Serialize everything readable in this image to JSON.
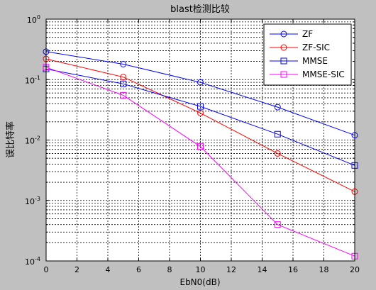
{
  "chart_data": {
    "type": "line",
    "title": "blast检测比较",
    "xlabel": "EbN0(dB)",
    "ylabel": "误比特率",
    "xlim": [
      0,
      20
    ],
    "ylim": [
      0.0001,
      1
    ],
    "yscale": "log",
    "grid": true,
    "legend_position": "top-right",
    "xticks": [
      "0",
      "2",
      "4",
      "6",
      "8",
      "10",
      "12",
      "14",
      "16",
      "18",
      "20"
    ],
    "yticks": [
      {
        "base": "10",
        "exp": "0"
      },
      {
        "base": "10",
        "exp": "-1"
      },
      {
        "base": "10",
        "exp": "-2"
      },
      {
        "base": "10",
        "exp": "-3"
      },
      {
        "base": "10",
        "exp": "-4"
      }
    ],
    "series": [
      {
        "name": "ZF",
        "color": "#0000ff",
        "marker": "circle",
        "x": [
          0,
          5,
          10,
          15,
          20
        ],
        "y": [
          0.29,
          0.18,
          0.09,
          0.035,
          0.012
        ]
      },
      {
        "name": "ZF-SIC",
        "color": "#ff0000",
        "marker": "circle",
        "x": [
          0,
          5,
          10,
          15,
          20
        ],
        "y": [
          0.22,
          0.11,
          0.028,
          0.006,
          0.0014
        ]
      },
      {
        "name": "MMSE",
        "color": "#0000ff",
        "marker": "square",
        "x": [
          0,
          5,
          10,
          15,
          20
        ],
        "y": [
          0.15,
          0.085,
          0.036,
          0.0125,
          0.0038
        ]
      },
      {
        "name": "MMSE-SIC",
        "color": "#ff00ff",
        "marker": "square",
        "x": [
          0,
          5,
          10,
          15,
          20
        ],
        "y": [
          0.16,
          0.055,
          0.0078,
          0.0004,
          0.00012
        ]
      }
    ]
  }
}
